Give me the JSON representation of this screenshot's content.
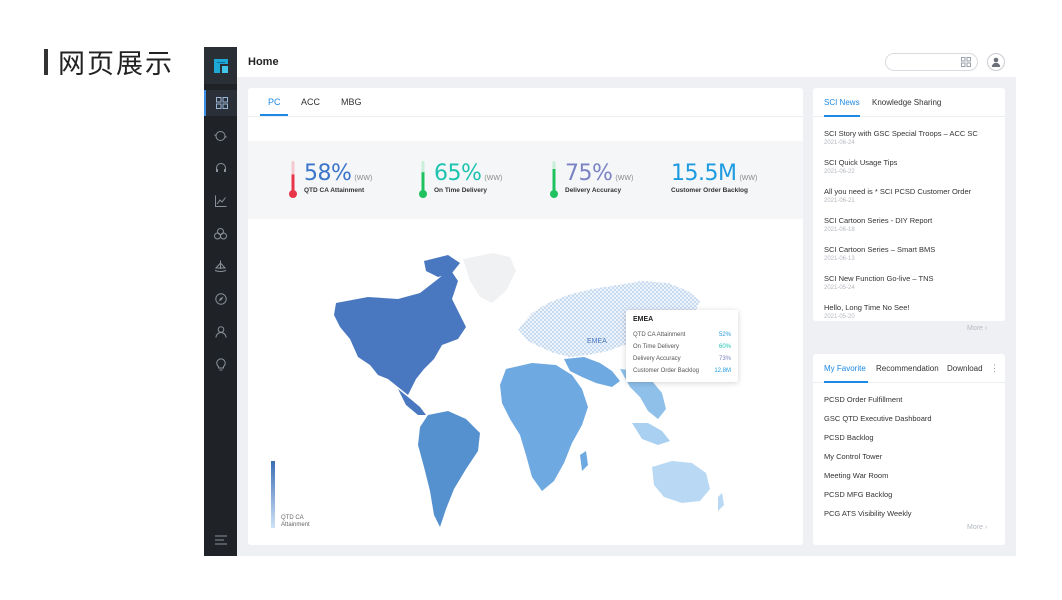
{
  "slide": {
    "title": "网页展示"
  },
  "header": {
    "title": "Home",
    "search_placeholder": ""
  },
  "sidebar": {
    "items": [
      {
        "icon": "dashboard-icon"
      },
      {
        "icon": "cloud-sync-icon"
      },
      {
        "icon": "headset-icon"
      },
      {
        "icon": "line-chart-icon"
      },
      {
        "icon": "cluster-icon"
      },
      {
        "icon": "ship-icon"
      },
      {
        "icon": "compass-icon"
      },
      {
        "icon": "user-icon"
      },
      {
        "icon": "lightbulb-icon"
      }
    ],
    "bottom_icon": "menu-icon"
  },
  "main": {
    "tabs": [
      {
        "label": "PC",
        "active": true
      },
      {
        "label": "ACC",
        "active": false
      },
      {
        "label": "MBG",
        "active": false
      }
    ],
    "kpis": [
      {
        "value": "58%",
        "unit": "(WW)",
        "label": "QTD CA Attainment",
        "color": "#3b74c9",
        "thermo_color": "#e8354a",
        "level": 0.58
      },
      {
        "value": "65%",
        "unit": "(WW)",
        "label": "On Time Delivery",
        "color": "#1ec3b0",
        "thermo_color": "#20c25f",
        "level": 0.65
      },
      {
        "value": "75%",
        "unit": "(WW)",
        "label": "Delivery Accuracy",
        "color": "#7a84c4",
        "thermo_color": "#20c25f",
        "level": 0.75
      },
      {
        "value": "15.5M",
        "unit": "(WW)",
        "label": "Customer Order Backlog",
        "color": "#1e9be0"
      }
    ],
    "map": {
      "region_label": "EMEA",
      "legend_label_line1": "QTD CA",
      "legend_label_line2": "Attainment",
      "colors": {
        "north_america": "#4a78c0",
        "south_america": "#5591cf",
        "africa": "#6fa9e1",
        "asia_south": "#8fc0ea",
        "australia": "#b8d8f3",
        "greenland": "#f0f1f3"
      }
    },
    "tooltip": {
      "title": "EMEA",
      "rows": [
        {
          "label": "QTD CA Attainment",
          "value": "52%"
        },
        {
          "label": "On Time Delivery",
          "value": "60%"
        },
        {
          "label": "Delivery Accuracy",
          "value": "73%"
        },
        {
          "label": "Customer Order Backlog",
          "value": "12.8M"
        }
      ]
    }
  },
  "news": {
    "tabs": [
      {
        "label": "SCI News",
        "active": true
      },
      {
        "label": "Knowledge Sharing",
        "active": false
      }
    ],
    "items": [
      {
        "title": "SCI Story with GSC Special Troops – ACC SC",
        "date": "2021-06-24"
      },
      {
        "title": "SCI Quick Usage Tips",
        "date": "2021-06-22"
      },
      {
        "title": "All you need is * SCI PCSD Customer Order",
        "date": "2021-06-21"
      },
      {
        "title": "SCI Cartoon Series - DIY  Report",
        "date": "2021-06-18"
      },
      {
        "title": "SCI Cartoon Series – Smart BMS",
        "date": "2021-06-13"
      },
      {
        "title": "SCI New Function Go-live – TNS",
        "date": "2021-05-24"
      },
      {
        "title": "Hello, Long Time No See!",
        "date": "2021-05-20"
      }
    ],
    "more_label": "More"
  },
  "favorites": {
    "tabs": [
      {
        "label": "My Favorite",
        "active": true
      },
      {
        "label": "Recommendation",
        "active": false
      },
      {
        "label": "Download",
        "active": false
      }
    ],
    "items": [
      "PCSD Order Fulfillment",
      "GSC QTD Executive Dashboard",
      "PCSD Backlog",
      "My Control Tower",
      "Meeting War Room",
      "PCSD MFG Backlog",
      "PCG ATS Visibility Weekly"
    ],
    "more_label": "More"
  }
}
